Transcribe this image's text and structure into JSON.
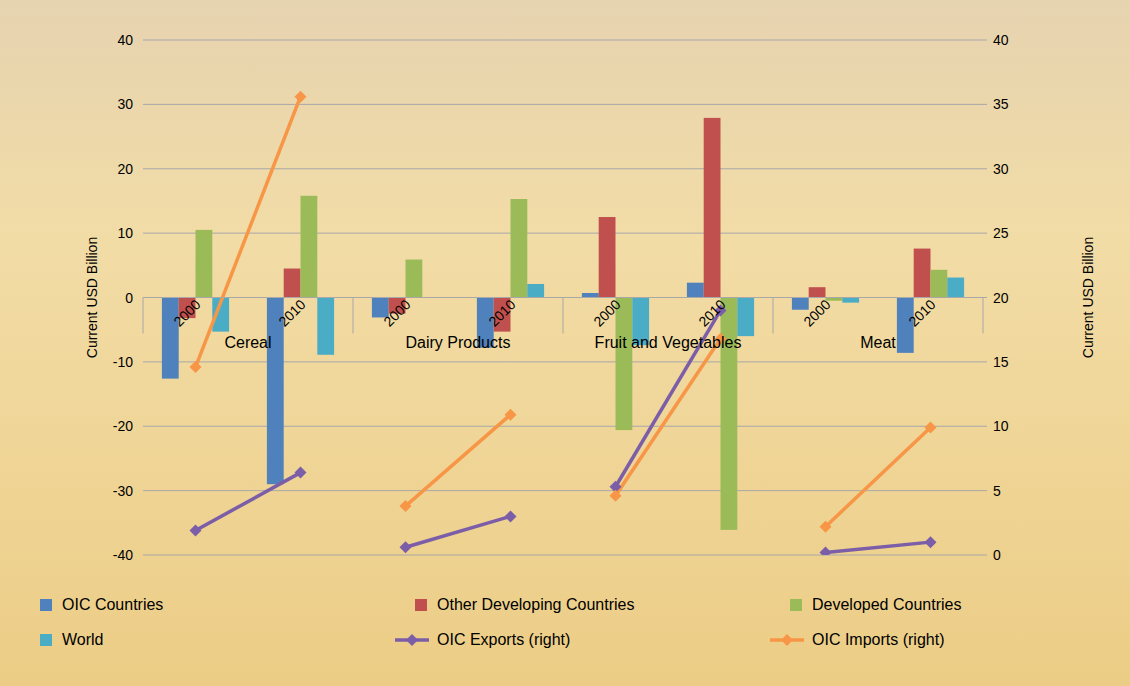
{
  "chart_data": {
    "type": "bar",
    "y_label": "Current USD Billion",
    "y2_label": "Current USD Billion",
    "categories": [
      "2000",
      "2010",
      "2000",
      "2010",
      "2000",
      "2010",
      "2000",
      "2010"
    ],
    "group_labels": [
      "Cereal",
      "Dairy Products",
      "Fruit and Vegetables",
      "Meat"
    ],
    "series": [
      {
        "name": "OIC Countries",
        "color": "#4f81bd",
        "values": [
          -12.6,
          -29.0,
          -3.1,
          -7.8,
          0.7,
          2.3,
          -1.9,
          -8.6
        ]
      },
      {
        "name": "Other Developing Countries",
        "color": "#c0504d",
        "values": [
          -3.2,
          4.5,
          -2.5,
          -5.3,
          12.5,
          27.9,
          1.6,
          7.6
        ]
      },
      {
        "name": "Developed Countries",
        "color": "#9bbb59",
        "values": [
          10.5,
          15.8,
          5.9,
          15.3,
          -20.6,
          -36.1,
          -0.5,
          4.3
        ]
      },
      {
        "name": "World",
        "color": "#4bacc6",
        "values": [
          -5.3,
          -8.9,
          0,
          2.1,
          -7.4,
          -6.0,
          -0.8,
          3.1
        ]
      },
      {
        "name": "OIC Exports (right)",
        "color": "#7b5ea7",
        "type": "line",
        "axis": "y2",
        "marker": "diamond",
        "values": [
          1.9,
          6.4,
          0.6,
          3.0,
          5.3,
          19.0,
          0.2,
          1.0
        ]
      },
      {
        "name": "OIC Imports (right)",
        "color": "#f79646",
        "type": "line",
        "axis": "y2",
        "marker": "diamond",
        "values": [
          14.6,
          35.6,
          3.8,
          10.9,
          4.6,
          16.8,
          2.2,
          9.9
        ]
      }
    ],
    "ylim": [
      -40,
      40
    ],
    "yticks": [
      -40,
      -30,
      -20,
      -10,
      0,
      10,
      20,
      30,
      40
    ],
    "y2lim": [
      0,
      40
    ],
    "y2ticks": [
      0,
      5,
      10,
      15,
      20,
      25,
      30,
      35,
      40
    ],
    "grid": true,
    "legend": "bottom"
  }
}
